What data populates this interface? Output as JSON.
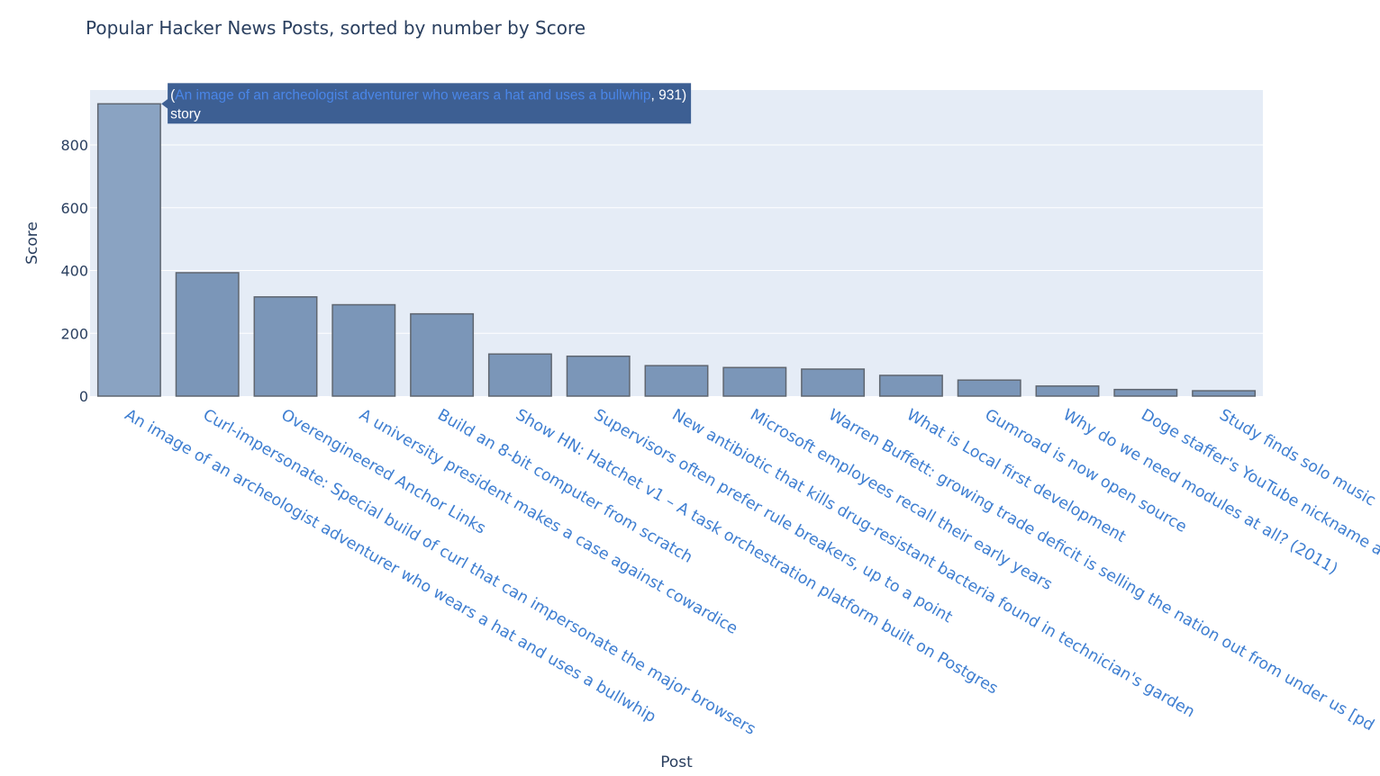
{
  "chart_data": {
    "type": "bar",
    "title": "Popular Hacker News Posts, sorted by number by Score",
    "xlabel": "Post",
    "ylabel": "Score",
    "ylim": [
      0,
      975
    ],
    "yticks": [
      0,
      200,
      400,
      600,
      800
    ],
    "grid": true,
    "categories": [
      "An image of an archeologist adventurer who wears a hat and uses a bullwhip",
      "Curl-impersonate: Special build of curl that can impersonate the major browsers",
      "Overengineered Anchor Links",
      "A university president makes a case against cowardice",
      "Build an 8-bit computer from scratch",
      "Show HN: Hatchet v1 – A task orchestration platform built on Postgres",
      "Supervisors often prefer rule breakers, up to a point",
      "New antibiotic that kills drug-resistant bacteria found in technician's garden",
      "Microsoft employees recall their early years",
      "Warren Buffett: growing trade deficit is selling the nation out from under us [pd",
      "What is Local first development",
      "Gumroad is now open source",
      "Why do we need modules at all? (2011)",
      "Doge staffer's YouTube nickname a",
      "Study finds solo music"
    ],
    "values": [
      931,
      393,
      316,
      291,
      262,
      134,
      127,
      97,
      91,
      86,
      66,
      51,
      32,
      21,
      17
    ],
    "hover": {
      "index": 0,
      "label": "An image of an archeologist adventurer who wears a hat and uses a bullwhip",
      "value": "931",
      "type": "story"
    }
  },
  "colors": {
    "plot_bg": "#e5ecf6",
    "bar": "#7b96b8",
    "tick_label": "#3e7ed1",
    "tooltip": "#3d5f93"
  }
}
